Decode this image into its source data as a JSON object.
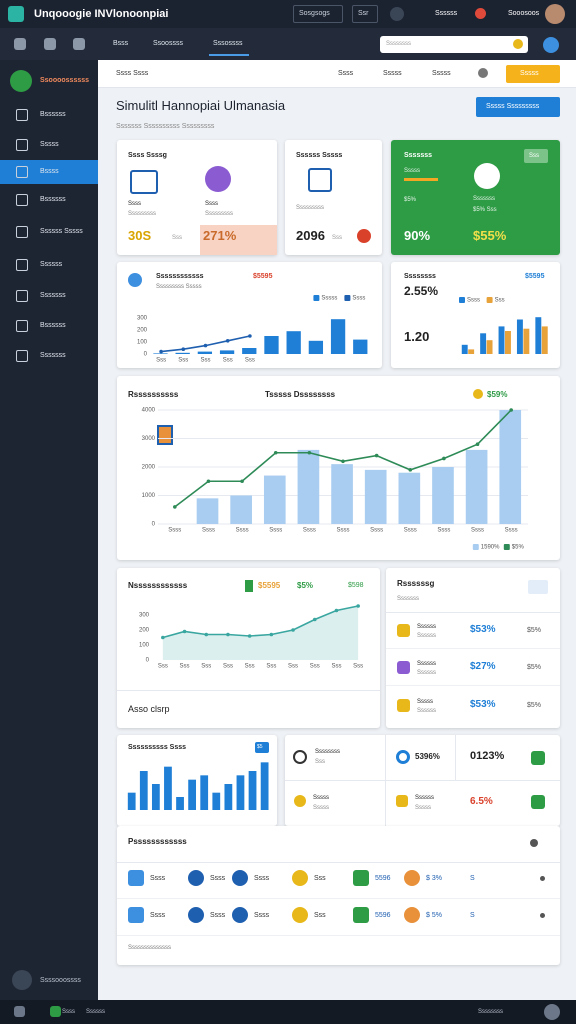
{
  "topbar": {
    "title": "Unqooogie INVlonoonpiai",
    "buttons": [
      "Sosgsogs",
      "Ssr"
    ],
    "user": "Ssssss",
    "account": "Sooosoos"
  },
  "navbar": {
    "tabs": [
      "Bsss",
      "Ssoossss",
      "Sssossss"
    ],
    "search": "Ssssssss"
  },
  "sidebar": {
    "brand": "Ssoooossssss",
    "items": [
      "Bssssss",
      "Sssss",
      "Bssss",
      "Bssssss",
      "Ssssss Sssss",
      "Ssssss",
      "Sssssss",
      "Bssssss",
      "Sssssss"
    ],
    "footer": "Ssssooossss"
  },
  "bottombar": {
    "left": "Ssss",
    "center": "Ssssss",
    "right": "Ssssssss"
  },
  "toolbar": {
    "items": [
      "Ssss Ssss",
      "Ssss",
      "Sssss",
      "Sssss"
    ],
    "button": "Sssss"
  },
  "header": {
    "title": "Simulitl Hannopiai Ulmanasia",
    "subtitle": "Sssssss Ssssssssss Sssssssss",
    "button": "Sssss Sssssssss"
  },
  "kpis": [
    {
      "title": "Ssss Ssssg",
      "items": [
        {
          "label": "Ssss",
          "sub": "Sssssssss"
        },
        {
          "label": "Ssss",
          "sub": "Sssssssss"
        }
      ],
      "values": [
        "30S",
        "271%"
      ],
      "note": "Sss"
    },
    {
      "title": "Ssssss Sssss",
      "sub": "Sssssssss",
      "value": "2096",
      "note": "Sss"
    },
    {
      "title": "Sssssss",
      "lines": [
        "Sssss",
        "$5%"
      ],
      "right": [
        "Sssssss",
        "$5% Sss"
      ],
      "values": [
        "90%",
        "$55%"
      ],
      "badge": "Sss"
    }
  ],
  "chart_data": [
    {
      "type": "combo",
      "title": "Ssssssssssss",
      "subtitle": "Sssssssss Sssss",
      "note": "$5595",
      "categories": [
        "Sss",
        "Sss",
        "Sss",
        "Sss",
        "Sss",
        null,
        null,
        null,
        null,
        null
      ],
      "ylim": [
        0,
        400
      ],
      "yticks": [
        0,
        100,
        200,
        300
      ],
      "grid": false,
      "legend": "top-right",
      "series": [
        {
          "name": "Sssss",
          "mark": "bar",
          "color": "#1f7fd6",
          "values": [
            5,
            10,
            20,
            30,
            50,
            150,
            190,
            110,
            290,
            120
          ]
        },
        {
          "name": "Ssss",
          "mark": "line",
          "color": "#1f5fb0",
          "values": [
            20,
            40,
            70,
            110,
            150,
            null,
            null,
            null,
            null,
            null
          ]
        }
      ]
    },
    {
      "type": "bar",
      "title": "Ssssssss",
      "note": "$5595",
      "annotations": [
        "2.55%",
        "1.20"
      ],
      "categories": [
        null,
        null,
        null,
        null,
        null
      ],
      "ylim": [
        0,
        100
      ],
      "legend": "top-left",
      "series": [
        {
          "name": "Ssss",
          "color": "#1f7fd6",
          "values": [
            20,
            45,
            60,
            75,
            80
          ]
        },
        {
          "name": "Sss",
          "color": "#e8a23a",
          "values": [
            10,
            30,
            50,
            55,
            60
          ]
        }
      ]
    },
    {
      "type": "combo",
      "title": "Rssssssssss",
      "subtitle": "Tsssss Dssssssss",
      "note": "$59%",
      "categories": [
        "Ssss",
        "Ssss",
        "Ssss",
        "Ssss",
        "Ssss",
        "Ssss",
        "Ssss",
        "Ssss",
        "Ssss",
        "Ssss",
        "Ssss"
      ],
      "ylim": [
        0,
        4000
      ],
      "yticks": [
        0,
        1000,
        2000,
        3000,
        4000
      ],
      "grid": true,
      "legend": "bottom-right",
      "series": [
        {
          "name": "1590%",
          "mark": "bar",
          "color": "#a8cdf0",
          "values": [
            0,
            900,
            1000,
            1700,
            2600,
            2100,
            1900,
            1800,
            2000,
            2600,
            4000
          ]
        },
        {
          "name": "$5%",
          "mark": "line",
          "color": "#2e8b57",
          "values": [
            600,
            1500,
            1500,
            2500,
            2500,
            2200,
            2400,
            1900,
            2300,
            2800,
            4000
          ]
        }
      ]
    },
    {
      "type": "area",
      "title": "Nssssssssssss",
      "notes": [
        "$5595",
        "$5%",
        "$598"
      ],
      "footer": "Asso clsrp",
      "categories": [
        "Sss",
        "Sss",
        "Sss",
        "Sss",
        "Sss",
        "Sss",
        "Sss",
        "Sss",
        "Sss",
        "Sss"
      ],
      "ylim": [
        0,
        400
      ],
      "yticks": [
        0,
        100,
        200,
        300
      ],
      "grid": false,
      "color": "#3aa6a0",
      "values": [
        150,
        190,
        170,
        170,
        160,
        170,
        200,
        270,
        330,
        360
      ]
    },
    {
      "type": "bar",
      "title": "Ssssssssss Ssss",
      "badge": "$5",
      "categories": [
        null,
        null,
        null,
        null,
        null,
        null,
        null,
        null,
        null,
        null,
        null,
        null
      ],
      "ylim": [
        0,
        120
      ],
      "color": "#1f7fd6",
      "values": [
        40,
        90,
        60,
        100,
        30,
        70,
        80,
        40,
        60,
        80,
        90,
        110
      ]
    }
  ],
  "list": {
    "title": "Rssssssg",
    "subtitle": "Sssssss",
    "rows": [
      {
        "name": "Ssssss",
        "sub": "Ssssss",
        "value": "$53%",
        "change": "$5%"
      },
      {
        "name": "Ssssss",
        "sub": "Ssssss",
        "value": "$27%",
        "change": "$5%"
      },
      {
        "name": "Sssss",
        "sub": "Ssssss",
        "value": "$53%",
        "change": "$5%"
      }
    ]
  },
  "stats": {
    "top": [
      {
        "label": "Ssssssss",
        "sub": "Sss"
      },
      {
        "value": "5396%"
      },
      {
        "value": "0123%"
      }
    ],
    "bottom": [
      {
        "label": "Sssss",
        "sub": "Sssss"
      },
      {
        "label": "Ssssss",
        "sub": "Sssss"
      },
      {
        "value": "6.5%"
      }
    ]
  },
  "table": {
    "title": "Pssssssssssss",
    "rows": [
      [
        "Ssss",
        "Ssss",
        "Ssss",
        "Sss",
        "5596",
        "$ 3%",
        "S"
      ],
      [
        "Ssss",
        "Ssss",
        "Ssss",
        "Sss",
        "5596",
        "$ 5%",
        "S"
      ]
    ],
    "footer": "Ssssssssssssss"
  }
}
